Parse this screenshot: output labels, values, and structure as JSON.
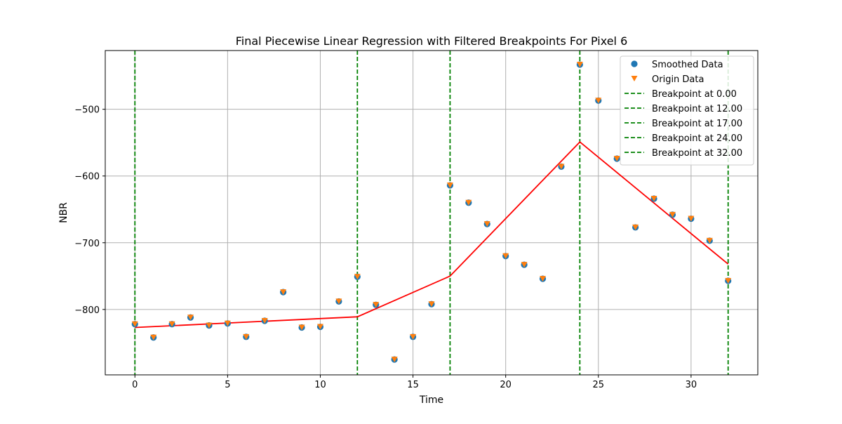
{
  "chart_data": {
    "type": "scatter",
    "title": "Final Piecewise Linear Regression with Filtered Breakpoints For Pixel 6",
    "xlabel": "Time",
    "ylabel": "NBR",
    "xlim": [
      -1.6,
      33.6
    ],
    "ylim": [
      -898,
      -412
    ],
    "xticks": [
      0,
      5,
      10,
      15,
      20,
      25,
      30
    ],
    "xtick_labels": [
      "0",
      "5",
      "10",
      "15",
      "20",
      "25",
      "30"
    ],
    "yticks": [
      -800,
      -700,
      -600,
      -500
    ],
    "ytick_labels": [
      "−800",
      "−700",
      "−600",
      "−500"
    ],
    "grid": true,
    "legend_position": "top-right",
    "colors": {
      "smoothed": "#1f77b4",
      "origin": "#ff7f0e",
      "fit": "#ff0000",
      "breakpoint": "#008000",
      "grid": "#b0b0b0"
    },
    "series": [
      {
        "name": "Smoothed Data",
        "kind": "points",
        "marker": "circle",
        "x": [
          0,
          1,
          2,
          3,
          4,
          5,
          6,
          7,
          8,
          9,
          10,
          11,
          12,
          13,
          14,
          15,
          16,
          17,
          18,
          19,
          20,
          21,
          22,
          23,
          24,
          25,
          26,
          27,
          28,
          29,
          30,
          31,
          32
        ],
        "y": [
          -822,
          -842,
          -822,
          -812,
          -824,
          -821,
          -841,
          -817,
          -774,
          -827,
          -826,
          -788,
          -751,
          -793,
          -875,
          -841,
          -792,
          -614,
          -640,
          -672,
          -720,
          -733,
          -754,
          -586,
          -433,
          -487,
          -574,
          -677,
          -634,
          -658,
          -664,
          -697,
          -757
        ]
      },
      {
        "name": "Origin Data",
        "kind": "points",
        "marker": "triangle-down",
        "x": [
          0,
          1,
          2,
          3,
          4,
          5,
          6,
          7,
          8,
          9,
          10,
          11,
          12,
          13,
          14,
          15,
          16,
          17,
          18,
          19,
          20,
          21,
          22,
          23,
          24,
          25,
          26,
          27,
          28,
          29,
          30,
          31,
          32
        ],
        "y": [
          -822,
          -842,
          -822,
          -812,
          -824,
          -821,
          -841,
          -817,
          -774,
          -827,
          -826,
          -788,
          -751,
          -793,
          -875,
          -841,
          -792,
          -614,
          -640,
          -672,
          -720,
          -733,
          -754,
          -586,
          -433,
          -487,
          -574,
          -677,
          -634,
          -658,
          -664,
          -697,
          -757
        ]
      },
      {
        "kind": "line",
        "x": [
          0,
          12,
          17,
          24,
          32
        ],
        "y": [
          -827,
          -811,
          -750,
          -549,
          -732
        ]
      }
    ],
    "breakpoints": [
      {
        "x": 0,
        "label": "Breakpoint at 0.00"
      },
      {
        "x": 12,
        "label": "Breakpoint at 12.00"
      },
      {
        "x": 17,
        "label": "Breakpoint at 17.00"
      },
      {
        "x": 24,
        "label": "Breakpoint at 24.00"
      },
      {
        "x": 32,
        "label": "Breakpoint at 32.00"
      }
    ]
  }
}
